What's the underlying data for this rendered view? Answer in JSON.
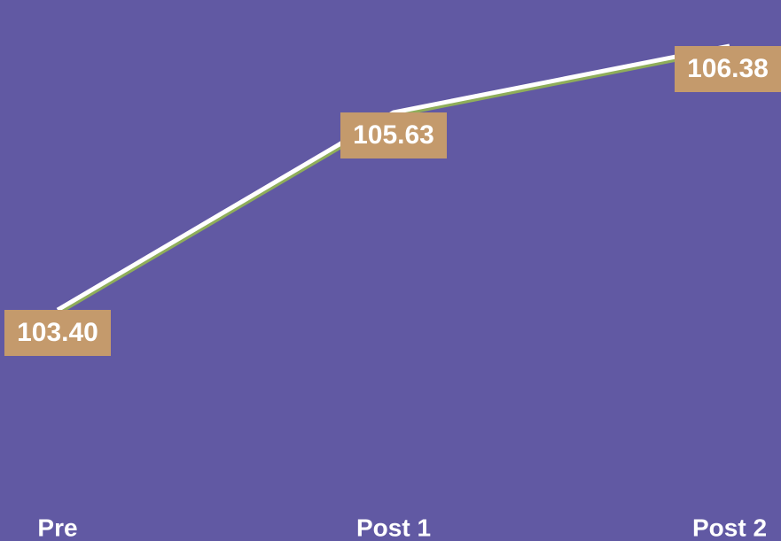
{
  "chart_data": {
    "type": "line",
    "categories": [
      "Pre",
      "Post 1",
      "Post 2"
    ],
    "series": [
      {
        "color": "#ffffff",
        "values": [
          103.4,
          105.63,
          106.38
        ],
        "value_labels": [
          "103.40",
          "105.63",
          "106.38"
        ]
      }
    ],
    "ylim": [
      101.3,
      106.9
    ]
  }
}
